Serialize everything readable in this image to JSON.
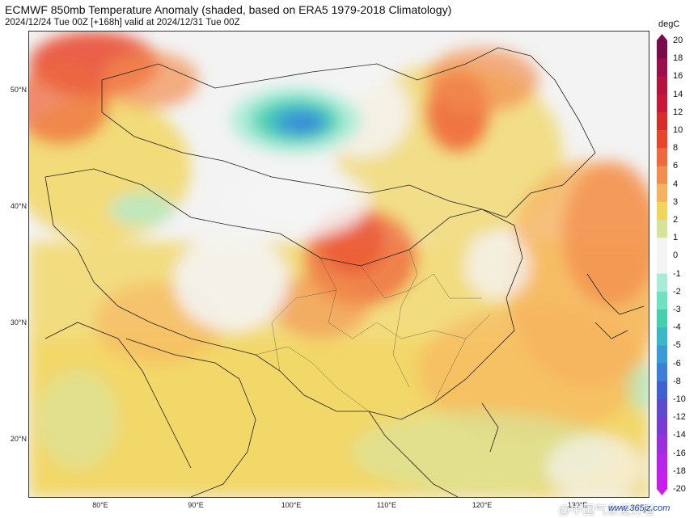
{
  "header": {
    "title": "ECMWF 850mb Temperature Anomaly (shaded, based on ERA5 1979-2018 Climatology)",
    "subtitle": "2024/12/24 Tue 00Z [+168h] valid at 2024/12/31 Tue 00Z"
  },
  "map": {
    "lat_labels": [
      "50°N",
      "40°N",
      "30°N",
      "20°N"
    ],
    "lon_labels": [
      "80°E",
      "90°E",
      "100°E",
      "110°E",
      "120°E",
      "130°E"
    ]
  },
  "colorbar": {
    "unit": "degC",
    "labels": [
      "20",
      "18",
      "16",
      "14",
      "12",
      "10",
      "8",
      "6",
      "4",
      "3",
      "2",
      "1",
      "0",
      "-1",
      "-2",
      "-3",
      "-4",
      "-5",
      "-6",
      "-8",
      "-10",
      "-12",
      "-14",
      "-16",
      "-18",
      "-20"
    ],
    "colors": [
      "#7a0a4a",
      "#9b0f4f",
      "#b5123f",
      "#c8173a",
      "#da2b2b",
      "#e8452a",
      "#ee6a3c",
      "#f28d4e",
      "#f6b35e",
      "#f1d45a",
      "#d8e39a",
      "#f4f4f4",
      "#f4f4f4",
      "#a8ecd8",
      "#6fe0c2",
      "#45cfae",
      "#3bb8c8",
      "#3a9bd6",
      "#3b7fd8",
      "#3f62d2",
      "#5a4bd0",
      "#7a3ad6",
      "#9a2ee0",
      "#b526ea",
      "#c81df0"
    ],
    "colors_legend_note": ""
  },
  "watermark": {
    "text": "@中国气象爱好者",
    "site": "www.365jz.com"
  }
}
